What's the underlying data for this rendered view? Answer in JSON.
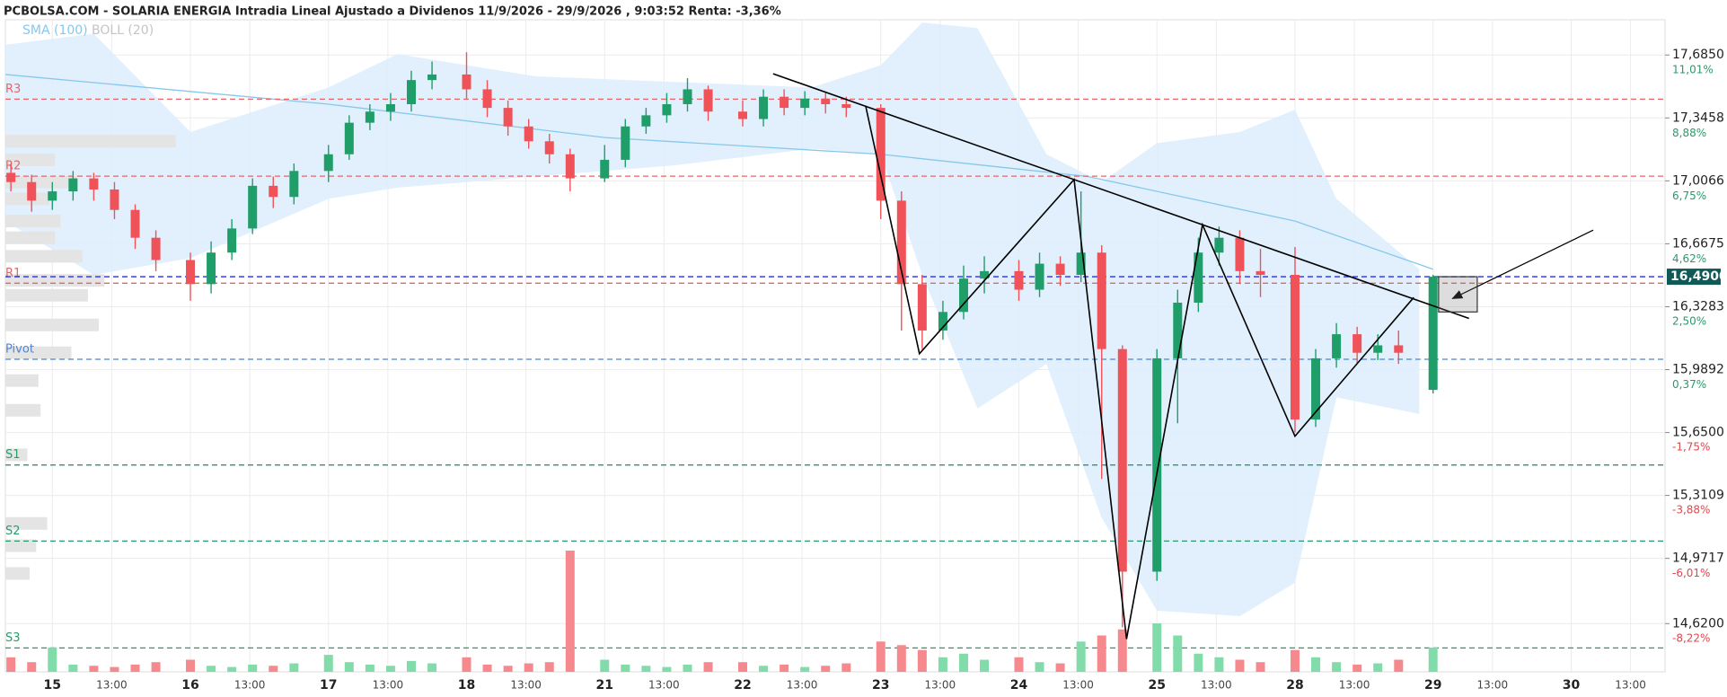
{
  "chart_data": {
    "type": "candlestick",
    "title": "PCBOLSA.COM - SOLARIA ENERGIA Intradia Lineal Ajustado a Dividenos 11/9/2026 - 29/9/2026 , 9:03:52 Renta: -3,36%",
    "up_color": "#1f9e6a",
    "down_color": "#f0525a",
    "volume_up_color": "#82dcaa",
    "volume_down_color": "#f6898e",
    "x": [
      -0.3,
      -0.15,
      0,
      0.15,
      0.3,
      0.45,
      0.6,
      0.75,
      1,
      1.15,
      1.3,
      1.45,
      1.6,
      1.75,
      2,
      2.15,
      2.3,
      2.45,
      2.6,
      2.75,
      3,
      3.15,
      3.3,
      3.45,
      3.6,
      3.75,
      4,
      4.15,
      4.3,
      4.45,
      4.6,
      4.75,
      5,
      5.15,
      5.3,
      5.45,
      5.6,
      5.75,
      6,
      6.15,
      6.3,
      6.45,
      6.6,
      6.75,
      7,
      7.15,
      7.3,
      7.45,
      7.6,
      7.75,
      8,
      8.15,
      8.3,
      8.45,
      8.6,
      8.75,
      9,
      9.15,
      9.3,
      9.45,
      9.6,
      9.75,
      10
    ],
    "open": [
      17.05,
      17.0,
      16.9,
      16.95,
      17.02,
      16.96,
      16.85,
      16.7,
      16.58,
      16.45,
      16.62,
      16.75,
      16.98,
      16.92,
      17.06,
      17.15,
      17.32,
      17.38,
      17.42,
      17.55,
      17.58,
      17.5,
      17.4,
      17.3,
      17.22,
      17.15,
      17.02,
      17.12,
      17.3,
      17.36,
      17.42,
      17.5,
      17.38,
      17.34,
      17.46,
      17.4,
      17.45,
      17.42,
      17.4,
      16.9,
      16.45,
      16.2,
      16.3,
      16.48,
      16.52,
      16.42,
      16.56,
      16.5,
      16.62,
      16.1,
      14.9,
      16.05,
      16.35,
      16.62,
      16.7,
      16.52,
      16.5,
      15.72,
      16.05,
      16.18,
      16.08,
      16.12,
      15.88
    ],
    "high": [
      17.1,
      17.04,
      17.0,
      17.06,
      17.05,
      17.0,
      16.88,
      16.74,
      16.62,
      16.68,
      16.8,
      17.02,
      17.03,
      17.1,
      17.2,
      17.36,
      17.42,
      17.48,
      17.6,
      17.65,
      17.7,
      17.55,
      17.44,
      17.34,
      17.26,
      17.18,
      17.2,
      17.34,
      17.4,
      17.48,
      17.56,
      17.52,
      17.44,
      17.5,
      17.5,
      17.49,
      17.48,
      17.46,
      17.42,
      16.95,
      16.5,
      16.36,
      16.55,
      16.6,
      16.58,
      16.62,
      16.6,
      16.95,
      16.66,
      16.12,
      16.1,
      16.42,
      16.7,
      16.76,
      16.74,
      16.64,
      16.65,
      16.1,
      16.24,
      16.22,
      16.18,
      16.2,
      16.5
    ],
    "low": [
      16.95,
      16.84,
      16.85,
      16.9,
      16.9,
      16.8,
      16.64,
      16.52,
      16.36,
      16.4,
      16.58,
      16.72,
      16.86,
      16.88,
      17.0,
      17.12,
      17.28,
      17.33,
      17.38,
      17.5,
      17.45,
      17.35,
      17.25,
      17.18,
      17.1,
      16.95,
      17.0,
      17.08,
      17.26,
      17.32,
      17.38,
      17.33,
      17.3,
      17.3,
      17.36,
      17.36,
      17.37,
      17.35,
      16.8,
      16.2,
      16.1,
      16.15,
      16.26,
      16.4,
      16.36,
      16.38,
      16.44,
      16.46,
      15.4,
      14.6,
      14.85,
      15.7,
      16.3,
      16.55,
      16.45,
      16.38,
      15.65,
      15.68,
      16.0,
      16.02,
      16.04,
      16.02,
      15.86
    ],
    "close": [
      17.0,
      16.9,
      16.95,
      17.02,
      16.96,
      16.85,
      16.7,
      16.58,
      16.45,
      16.62,
      16.75,
      16.98,
      16.92,
      17.06,
      17.15,
      17.32,
      17.38,
      17.42,
      17.55,
      17.58,
      17.5,
      17.4,
      17.3,
      17.22,
      17.15,
      17.02,
      17.12,
      17.3,
      17.36,
      17.42,
      17.5,
      17.38,
      17.34,
      17.46,
      17.4,
      17.45,
      17.42,
      17.4,
      16.9,
      16.45,
      16.2,
      16.3,
      16.48,
      16.52,
      16.42,
      16.56,
      16.5,
      16.62,
      16.1,
      14.9,
      16.05,
      16.35,
      16.62,
      16.7,
      16.52,
      16.5,
      15.72,
      16.05,
      16.18,
      16.08,
      16.12,
      16.08,
      16.49
    ],
    "volume": [
      12,
      8,
      20,
      6,
      5,
      4,
      6,
      8,
      10,
      5,
      4,
      6,
      5,
      7,
      14,
      8,
      6,
      5,
      9,
      7,
      12,
      6,
      5,
      7,
      8,
      100,
      10,
      6,
      5,
      4,
      6,
      8,
      8,
      5,
      6,
      4,
      5,
      7,
      25,
      22,
      18,
      12,
      15,
      10,
      12,
      8,
      7,
      25,
      30,
      35,
      40,
      30,
      15,
      12,
      10,
      8,
      18,
      12,
      8,
      6,
      7,
      10,
      20
    ],
    "vlim": [
      0,
      100
    ],
    "sma": {
      "name": "SMA (100)",
      "color": "#86c8ec",
      "x": [
        -0.34,
        2,
        4,
        6,
        7.5,
        9,
        10
      ],
      "values": [
        17.58,
        17.42,
        17.24,
        17.15,
        17.03,
        16.79,
        16.53
      ]
    },
    "bollinger": {
      "name": "BOLL (20)",
      "color": "#dcedfb",
      "label_color": "#c4c4c4",
      "x": [
        -0.34,
        0.3,
        1,
        2,
        2.5,
        3.5,
        4.5,
        5.5,
        6,
        6.3,
        6.7,
        7.2,
        7.6,
        8,
        8.6,
        9,
        9.3,
        9.9
      ],
      "upper": [
        17.74,
        17.8,
        17.27,
        17.51,
        17.69,
        17.57,
        17.54,
        17.51,
        17.63,
        17.86,
        17.83,
        17.15,
        17.0,
        17.21,
        17.27,
        17.39,
        16.91,
        16.53
      ],
      "lower": [
        16.79,
        16.5,
        16.59,
        16.91,
        16.97,
        17.03,
        17.09,
        17.18,
        17.15,
        16.5,
        15.78,
        16.02,
        15.19,
        14.69,
        14.66,
        14.84,
        15.84,
        15.75
      ]
    },
    "levels": [
      {
        "name": "R3",
        "value": 17.447,
        "color": "#e8646a"
      },
      {
        "name": "R2",
        "value": 17.032,
        "color": "#e8646a"
      },
      {
        "name": "R1",
        "value": 16.455,
        "color": "#e8646a"
      },
      {
        "name": "Pivot",
        "value": 16.045,
        "color": "#4a86d8"
      },
      {
        "name": "S1",
        "value": 15.475,
        "color": "#2a9a6a"
      },
      {
        "name": "S2",
        "value": 15.065,
        "color": "#2a9a6a"
      },
      {
        "name": "S3",
        "value": 14.489,
        "color": "#2a9a6a"
      }
    ],
    "last_price": {
      "value": 16.49,
      "label": "16,4900",
      "color": "#2a2af0",
      "box_color": "#0f5a57"
    },
    "profile": {
      "prices": [
        17.22,
        17.12,
        17.0,
        16.91,
        16.79,
        16.7,
        16.6,
        16.47,
        16.39,
        16.23,
        16.08,
        15.93,
        15.77,
        15.53,
        15.16,
        15.04,
        14.89
      ],
      "values": [
        155,
        45,
        65,
        40,
        50,
        45,
        70,
        90,
        75,
        85,
        60,
        30,
        32,
        20,
        38,
        28,
        22
      ],
      "lim": [
        0,
        200
      ]
    },
    "drawings": [
      {
        "x": [
          5.22,
          10.26
        ],
        "y": [
          17.584,
          16.265
        ]
      },
      {
        "x": [
          5.89,
          6.28,
          7.4,
          7.78,
          8.33,
          9.0,
          9.86
        ],
        "y": [
          17.412,
          16.075,
          17.014,
          14.537,
          16.77,
          15.63,
          16.378
        ]
      },
      {
        "x": [
          11.16,
          10.14
        ],
        "y": [
          16.741,
          16.372
        ],
        "arrow": true
      },
      {
        "box_x": [
          10.04,
          10.32
        ],
        "box_y": [
          16.49,
          16.3
        ]
      }
    ],
    "xlim": [
      -0.34,
      11.68
    ],
    "xticks": [
      {
        "value": 0,
        "label": "15"
      },
      {
        "value": 0.43,
        "label": "13:00"
      },
      {
        "value": 1,
        "label": "16"
      },
      {
        "value": 1.43,
        "label": "13:00"
      },
      {
        "value": 2,
        "label": "17"
      },
      {
        "value": 2.43,
        "label": "13:00"
      },
      {
        "value": 3,
        "label": "18"
      },
      {
        "value": 3.43,
        "label": "13:00"
      },
      {
        "value": 4,
        "label": "21"
      },
      {
        "value": 4.43,
        "label": "13:00"
      },
      {
        "value": 5,
        "label": "22"
      },
      {
        "value": 5.43,
        "label": "13:00"
      },
      {
        "value": 6,
        "label": "23"
      },
      {
        "value": 6.43,
        "label": "13:00"
      },
      {
        "value": 7,
        "label": "24"
      },
      {
        "value": 7.43,
        "label": "13:00"
      },
      {
        "value": 8,
        "label": "25"
      },
      {
        "value": 8.43,
        "label": "13:00"
      },
      {
        "value": 9,
        "label": "28"
      },
      {
        "value": 9.43,
        "label": "13:00"
      },
      {
        "value": 10,
        "label": "29"
      },
      {
        "value": 10.43,
        "label": "13:00"
      },
      {
        "value": 11,
        "label": "30"
      },
      {
        "value": 11.43,
        "label": "13:00"
      }
    ],
    "ylim": [
      14.36,
      17.875
    ],
    "yticks": [
      {
        "value": 17.685,
        "label": "17,6850"
      },
      {
        "value": 17.3458,
        "label": "17,3458"
      },
      {
        "value": 17.0066,
        "label": "17,0066"
      },
      {
        "value": 16.6675,
        "label": "16,6675"
      },
      {
        "value": 16.3283,
        "label": "16,3283"
      },
      {
        "value": 15.9892,
        "label": "15,9892"
      },
      {
        "value": 15.65,
        "label": "15,6500"
      },
      {
        "value": 15.3109,
        "label": "15,3109"
      },
      {
        "value": 14.9717,
        "label": "14,9717"
      },
      {
        "value": 14.62,
        "label": "14,6200"
      }
    ],
    "y2lim": [
      -9.86,
      12.2
    ],
    "y2ticks": [
      {
        "value": 11.01,
        "label": "11,01%"
      },
      {
        "value": 8.88,
        "label": "8,88%"
      },
      {
        "value": 6.75,
        "label": "6,75%"
      },
      {
        "value": 4.62,
        "label": "4,62%"
      },
      {
        "value": 2.5,
        "label": "2,50%"
      },
      {
        "value": 0.37,
        "label": "0,37%"
      },
      {
        "value": -1.75,
        "label": "-1,75%"
      },
      {
        "value": -3.88,
        "label": "-3,88%"
      },
      {
        "value": -6.01,
        "label": "-6,01%"
      },
      {
        "value": -8.22,
        "label": "-8,22%"
      }
    ],
    "grid": true
  }
}
